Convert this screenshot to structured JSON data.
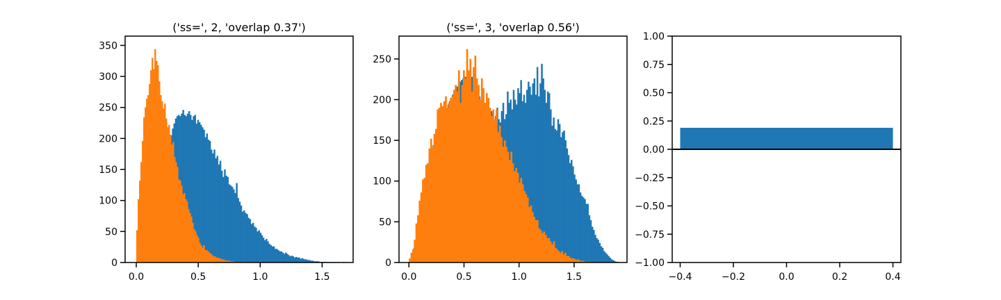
{
  "colors": {
    "blue": "#1f77b4",
    "orange": "#ff7f0e",
    "axis": "#000000",
    "background": "#ffffff"
  },
  "chart_data": [
    {
      "type": "bar",
      "kind": "histogram",
      "title": "('ss=', 2, 'overlap 0.37')",
      "xlim": [
        -0.09,
        1.75
      ],
      "ylim": [
        0,
        365
      ],
      "xticks": [
        0.0,
        0.5,
        1.0,
        1.5
      ],
      "xtick_labels": [
        "0.0",
        "0.5",
        "1.0",
        "1.5"
      ],
      "yticks": [
        0,
        50,
        100,
        150,
        200,
        250,
        300,
        350
      ],
      "ytick_labels": [
        "0",
        "50",
        "100",
        "150",
        "200",
        "250",
        "300",
        "350"
      ],
      "series": [
        {
          "name": "blue",
          "color": "#1f77b4",
          "x_range": [
            0.0,
            1.68
          ],
          "counts": [
            5,
            18,
            45,
            80,
            118,
            152,
            182,
            200,
            212,
            218,
            222,
            220,
            215,
            208,
            203,
            196,
            190,
            192,
            186,
            182,
            188,
            195,
            198,
            205,
            216,
            224,
            232,
            236,
            238,
            236,
            240,
            246,
            238,
            236,
            240,
            244,
            238,
            230,
            236,
            238,
            224,
            230,
            226,
            222,
            218,
            214,
            202,
            208,
            198,
            196,
            182,
            176,
            182,
            168,
            172,
            158,
            164,
            148,
            138,
            150,
            140,
            138,
            126,
            124,
            122,
            118,
            112,
            128,
            104,
            98,
            92,
            82,
            84,
            80,
            78,
            72,
            70,
            62,
            64,
            58,
            56,
            50,
            52,
            48,
            44,
            40,
            36,
            38,
            34,
            30,
            28,
            26,
            26,
            22,
            22,
            20,
            18,
            18,
            16,
            14,
            16,
            14,
            12,
            10,
            11,
            10,
            8,
            9,
            8,
            8,
            6,
            7,
            6,
            5,
            5,
            4,
            4,
            3,
            3,
            2,
            2,
            2,
            2,
            1,
            1,
            1,
            1,
            1,
            1,
            1,
            0,
            1,
            0,
            1,
            0,
            1,
            0,
            0,
            0,
            1
          ]
        },
        {
          "name": "orange",
          "color": "#ff7f0e",
          "x_range": [
            0.0,
            0.9
          ],
          "counts": [
            52,
            102,
            132,
            162,
            196,
            234,
            250,
            264,
            270,
            288,
            310,
            330,
            312,
            344,
            325,
            318,
            292,
            270,
            260,
            248,
            256,
            232,
            218,
            222,
            206,
            190,
            194,
            170,
            162,
            154,
            134,
            132,
            124,
            110,
            112,
            102,
            98,
            86,
            80,
            74,
            64,
            54,
            50,
            44,
            40,
            32,
            28,
            24,
            28,
            20,
            20,
            18,
            16,
            14,
            12,
            10,
            10,
            8,
            8,
            7,
            6,
            5,
            5,
            4,
            3,
            3,
            3,
            2,
            2,
            2,
            1,
            1,
            1,
            1,
            0,
            1,
            0,
            1,
            0,
            1
          ]
        }
      ]
    },
    {
      "type": "bar",
      "kind": "histogram",
      "title": "('ss=', 3, 'overlap 0.56')",
      "xlim": [
        -0.09,
        1.98
      ],
      "ylim": [
        0,
        278
      ],
      "xticks": [
        0.0,
        0.5,
        1.0,
        1.5
      ],
      "xtick_labels": [
        "0.0",
        "0.5",
        "1.0",
        "1.5"
      ],
      "yticks": [
        0,
        50,
        100,
        150,
        200,
        250
      ],
      "ytick_labels": [
        "0",
        "50",
        "100",
        "150",
        "200",
        "250"
      ],
      "series": [
        {
          "name": "blue",
          "color": "#1f77b4",
          "x_range": [
            0.0,
            1.9
          ],
          "counts": [
            2,
            5,
            10,
            18,
            26,
            36,
            46,
            56,
            66,
            76,
            86,
            96,
            106,
            116,
            126,
            136,
            144,
            150,
            158,
            162,
            168,
            172,
            176,
            180,
            184,
            190,
            194,
            198,
            200,
            206,
            208,
            212,
            216,
            218,
            222,
            224,
            226,
            228,
            228,
            230,
            230,
            226,
            228,
            224,
            222,
            214,
            210,
            204,
            200,
            198,
            196,
            194,
            192,
            190,
            188,
            186,
            184,
            176,
            180,
            190,
            176,
            172,
            186,
            196,
            176,
            182,
            210,
            196,
            200,
            188,
            212,
            200,
            194,
            214,
            208,
            224,
            198,
            206,
            196,
            212,
            222,
            216,
            206,
            220,
            226,
            206,
            240,
            204,
            220,
            244,
            226,
            212,
            196,
            210,
            208,
            188,
            168,
            178,
            164,
            162,
            176,
            170,
            154,
            160,
            162,
            150,
            140,
            132,
            122,
            126,
            118,
            108,
            102,
            96,
            96,
            86,
            82,
            80,
            78,
            72,
            72,
            58,
            52,
            44,
            40,
            34,
            30,
            28,
            24,
            20,
            18,
            14,
            12,
            10,
            8,
            6,
            4,
            3,
            2,
            1,
            1
          ]
        },
        {
          "name": "orange",
          "color": "#ff7f0e",
          "x_range": [
            0.0,
            1.65
          ],
          "counts": [
            5,
            12,
            16,
            28,
            48,
            58,
            76,
            86,
            102,
            104,
            120,
            122,
            140,
            152,
            142,
            158,
            164,
            188,
            190,
            196,
            192,
            198,
            204,
            190,
            196,
            202,
            204,
            212,
            218,
            210,
            236,
            196,
            218,
            236,
            226,
            262,
            236,
            250,
            210,
            240,
            254,
            226,
            218,
            200,
            226,
            214,
            196,
            208,
            202,
            190,
            180,
            188,
            176,
            188,
            160,
            168,
            154,
            142,
            150,
            142,
            136,
            126,
            136,
            122,
            112,
            116,
            110,
            98,
            104,
            96,
            88,
            84,
            80,
            68,
            70,
            62,
            56,
            52,
            52,
            42,
            40,
            36,
            38,
            34,
            30,
            30,
            26,
            22,
            26,
            18,
            16,
            14,
            12,
            14,
            10,
            12,
            8,
            8,
            6,
            5,
            5,
            4,
            3,
            4,
            2,
            2,
            2,
            1,
            1,
            1,
            1
          ]
        }
      ]
    },
    {
      "type": "bar",
      "title": "",
      "xlim": [
        -0.43,
        0.43
      ],
      "ylim": [
        -1.0,
        1.0
      ],
      "xticks": [
        -0.4,
        -0.2,
        0.0,
        0.2,
        0.4
      ],
      "xtick_labels": [
        "−0.4",
        "−0.2",
        "0.0",
        "0.2",
        "0.4"
      ],
      "yticks": [
        -1.0,
        -0.75,
        -0.5,
        -0.25,
        0.0,
        0.25,
        0.5,
        0.75,
        1.0
      ],
      "ytick_labels": [
        "−1.00",
        "−0.75",
        "−0.50",
        "−0.25",
        "0.00",
        "0.25",
        "0.50",
        "0.75",
        "1.00"
      ],
      "bars": [
        {
          "x": 0.0,
          "width": 0.8,
          "value": 0.19,
          "color": "#1f77b4"
        }
      ],
      "hline": 0.0
    }
  ]
}
